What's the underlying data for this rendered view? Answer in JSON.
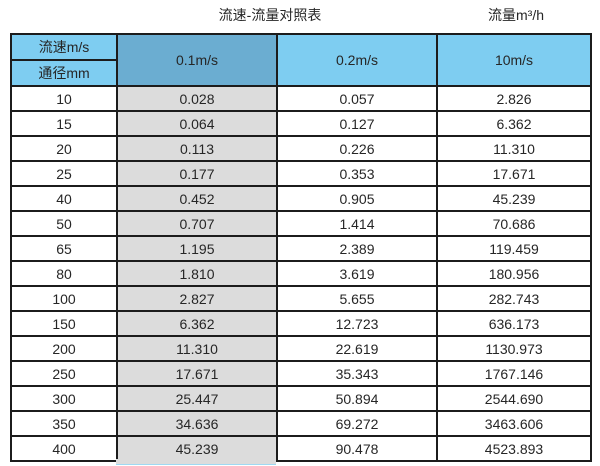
{
  "titles": {
    "main": "流速-流量对照表",
    "right": "流量m³/h"
  },
  "colors": {
    "light_blue": "#7ecdf1",
    "dark_blue": "#6badd1",
    "gray": "#dcdcdc",
    "border": "#1c1c1c",
    "text": "#262626",
    "bg": "#ffffff"
  },
  "table": {
    "corner_top_label": "流速m/s",
    "corner_bottom_label": "通径mm",
    "column_headers": [
      "0.1m/s",
      "0.2m/s",
      "10m/s"
    ],
    "rows": [
      {
        "diameter": "10",
        "values": [
          "0.028",
          "0.057",
          "2.826"
        ]
      },
      {
        "diameter": "15",
        "values": [
          "0.064",
          "0.127",
          "6.362"
        ]
      },
      {
        "diameter": "20",
        "values": [
          "0.113",
          "0.226",
          "11.310"
        ]
      },
      {
        "diameter": "25",
        "values": [
          "0.177",
          "0.353",
          "17.671"
        ]
      },
      {
        "diameter": "40",
        "values": [
          "0.452",
          "0.905",
          "45.239"
        ]
      },
      {
        "diameter": "50",
        "values": [
          "0.707",
          "1.414",
          "70.686"
        ]
      },
      {
        "diameter": "65",
        "values": [
          "1.195",
          "2.389",
          "119.459"
        ]
      },
      {
        "diameter": "80",
        "values": [
          "1.810",
          "3.619",
          "180.956"
        ]
      },
      {
        "diameter": "100",
        "values": [
          "2.827",
          "5.655",
          "282.743"
        ]
      },
      {
        "diameter": "150",
        "values": [
          "6.362",
          "12.723",
          "636.173"
        ]
      },
      {
        "diameter": "200",
        "values": [
          "11.310",
          "22.619",
          "1130.973"
        ]
      },
      {
        "diameter": "250",
        "values": [
          "17.671",
          "35.343",
          "1767.146"
        ]
      },
      {
        "diameter": "300",
        "values": [
          "25.447",
          "50.894",
          "2544.690"
        ]
      },
      {
        "diameter": "350",
        "values": [
          "34.636",
          "69.272",
          "3463.606"
        ]
      },
      {
        "diameter": "400",
        "values": [
          "45.239",
          "90.478",
          "4523.893"
        ]
      }
    ]
  }
}
